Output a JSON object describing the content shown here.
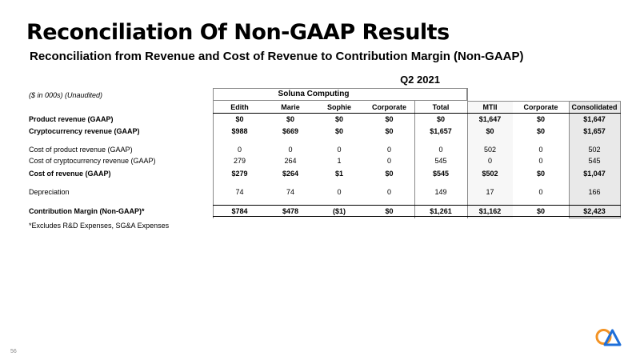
{
  "page": {
    "title": "Reconciliation Of Non-GAAP Results",
    "subtitle": "Reconciliation from Revenue and Cost of Revenue to Contribution Margin (Non-GAAP)",
    "page_number": "56",
    "footnote": "*Excludes R&D Expenses, SG&A Expenses"
  },
  "table": {
    "period": "Q2 2021",
    "units_note": "($ in 000s) (Unaudited)",
    "segment_label": "Soluna Computing",
    "columns": [
      "Edith",
      "Marie",
      "Sophie",
      "Corporate",
      "Total",
      "MTII",
      "Corporate",
      "Consolidated"
    ],
    "rows": [
      {
        "label": "Product revenue (GAAP)",
        "values": [
          "$0",
          "$0",
          "$0",
          "$0",
          "$0",
          "$1,647",
          "$0",
          "$1,647"
        ]
      },
      {
        "label": "Cryptocurrency revenue (GAAP)",
        "values": [
          "$988",
          "$669",
          "$0",
          "$0",
          "$1,657",
          "$0",
          "$0",
          "$1,657"
        ]
      },
      {
        "label": "Cost of product revenue (GAAP)",
        "values": [
          "0",
          "0",
          "0",
          "0",
          "0",
          "502",
          "0",
          "502"
        ]
      },
      {
        "label": "Cost of cryptocurrency revenue (GAAP)",
        "values": [
          "279",
          "264",
          "1",
          "0",
          "545",
          "0",
          "0",
          "545"
        ]
      },
      {
        "label": "Cost of revenue (GAAP)",
        "values": [
          "$279",
          "$264",
          "$1",
          "$0",
          "$545",
          "$502",
          "$0",
          "$1,047"
        ]
      },
      {
        "label": "Depreciation",
        "values": [
          "74",
          "74",
          "0",
          "0",
          "149",
          "17",
          "0",
          "166"
        ]
      },
      {
        "label": "Contribution Margin (Non-GAAP)*",
        "values": [
          "$784",
          "$478",
          "($1)",
          "$0",
          "$1,261",
          "$1,162",
          "$0",
          "$2,423"
        ]
      }
    ]
  },
  "logo": {
    "icon": "soluna-logo-icon",
    "colors": {
      "orange": "#f39324",
      "blue": "#1e6fd9"
    }
  }
}
